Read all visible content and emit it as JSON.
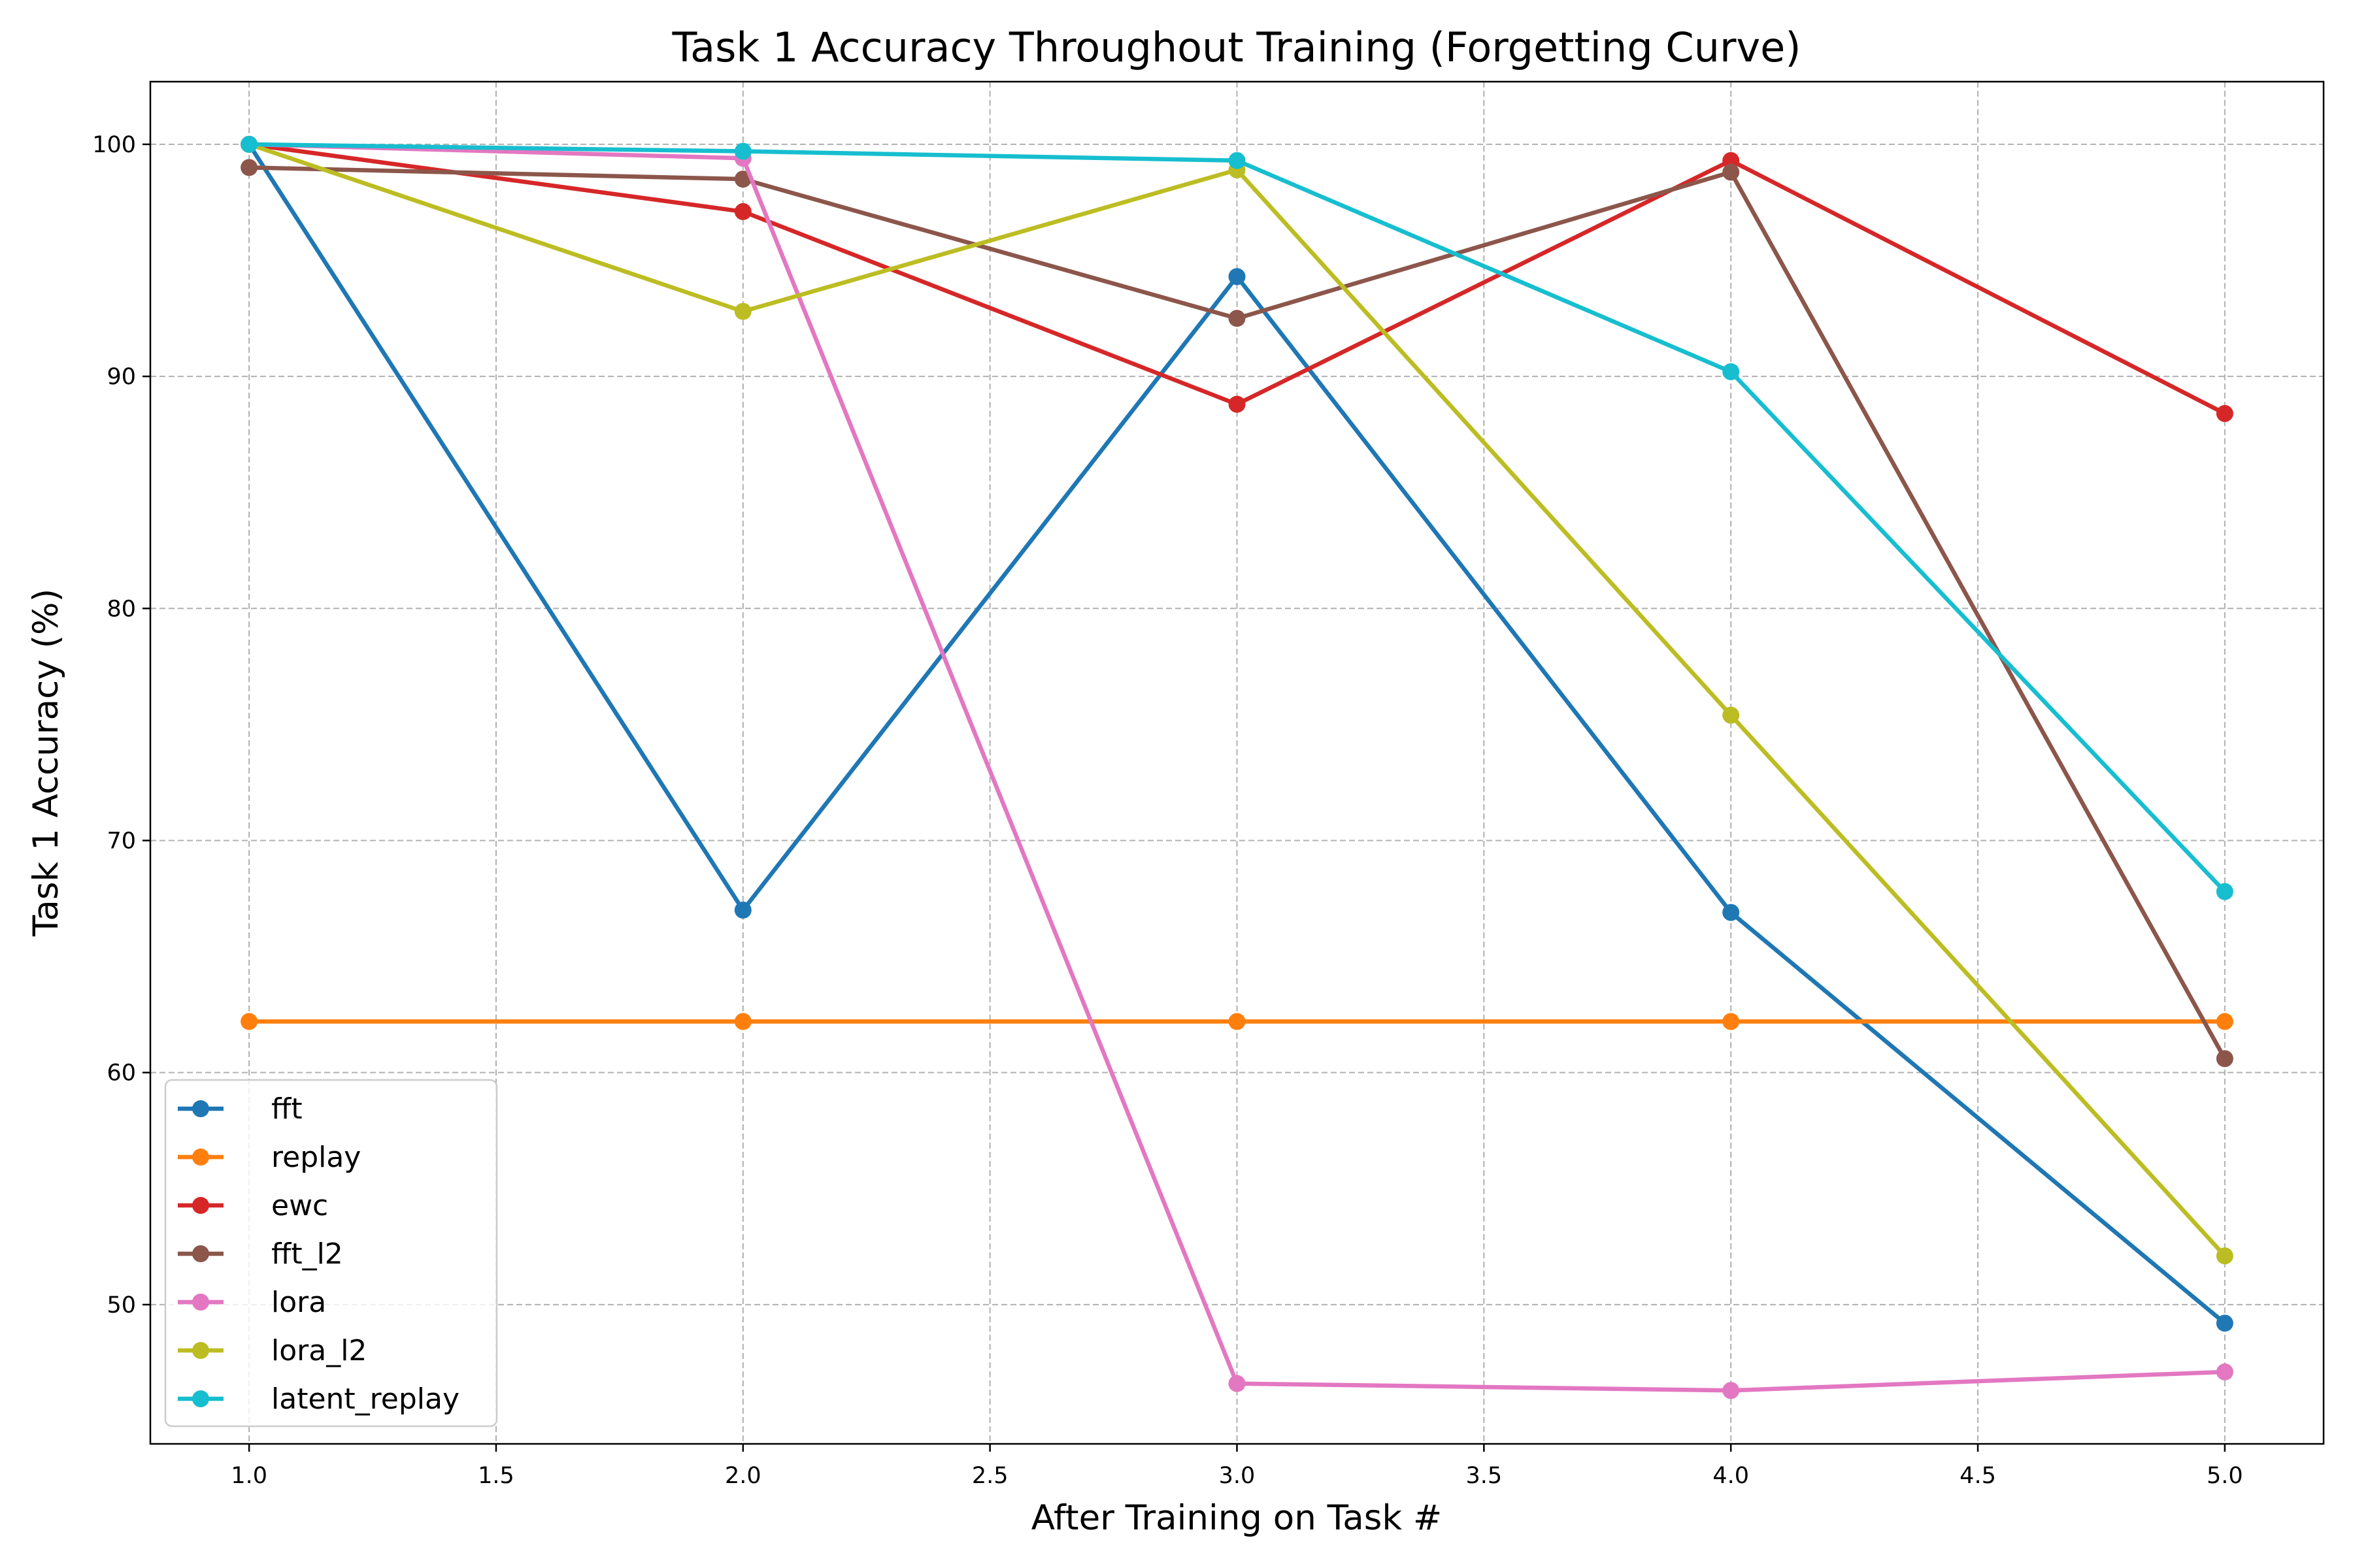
{
  "chart_data": {
    "type": "line",
    "title": "Task 1 Accuracy Throughout Training (Forgetting Curve)",
    "xlabel": "After Training on Task #",
    "ylabel": "Task 1 Accuracy (%)",
    "xlim": [
      0.8,
      5.2
    ],
    "ylim": [
      44.0,
      102.7
    ],
    "xticks": [
      1.0,
      1.5,
      2.0,
      2.5,
      3.0,
      3.5,
      4.0,
      4.5,
      5.0
    ],
    "xtick_labels": [
      "1.0",
      "1.5",
      "2.0",
      "2.5",
      "3.0",
      "3.5",
      "4.0",
      "4.5",
      "5.0"
    ],
    "yticks": [
      50,
      60,
      70,
      80,
      90,
      100
    ],
    "ytick_labels": [
      "50",
      "60",
      "70",
      "80",
      "90",
      "100"
    ],
    "grid": true,
    "legend_position": "lower-left",
    "x": [
      1,
      2,
      3,
      4,
      5
    ],
    "series": [
      {
        "name": "fft",
        "color": "#1f77b4",
        "values": [
          100.0,
          67.0,
          94.3,
          66.9,
          49.2
        ]
      },
      {
        "name": "replay",
        "color": "#ff7f0e",
        "values": [
          62.2,
          62.2,
          62.2,
          62.2,
          62.2
        ]
      },
      {
        "name": "ewc",
        "color": "#d62728",
        "values": [
          100.0,
          97.1,
          88.8,
          99.3,
          88.4
        ]
      },
      {
        "name": "fft_l2",
        "color": "#8c564b",
        "values": [
          99.0,
          98.5,
          92.5,
          98.8,
          60.6
        ]
      },
      {
        "name": "lora",
        "color": "#e377c2",
        "values": [
          100.0,
          99.4,
          46.6,
          46.3,
          47.1
        ]
      },
      {
        "name": "lora_l2",
        "color": "#bcbd22",
        "values": [
          100.0,
          92.8,
          98.9,
          75.4,
          52.1
        ]
      },
      {
        "name": "latent_replay",
        "color": "#17becf",
        "values": [
          100.0,
          99.7,
          99.3,
          90.2,
          67.8
        ]
      }
    ]
  }
}
